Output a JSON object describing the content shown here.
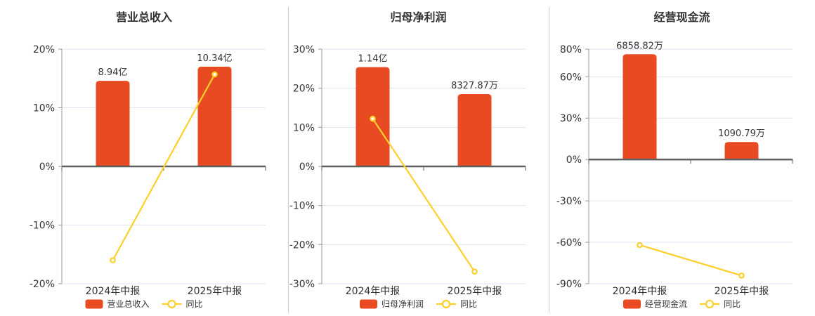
{
  "page": {
    "background": "#ffffff"
  },
  "colors": {
    "bar": "#e84a22",
    "line": "#fcd029",
    "text": "#333333",
    "grid": "#dde5f0",
    "zero_line": "#5f5f5f",
    "axis_line": "#999999",
    "separator": "#cccccc"
  },
  "chart_data": [
    {
      "type": "bar",
      "title": "营业总收入",
      "categories": [
        "2024年中报",
        "2025年中报"
      ],
      "bar_series": {
        "name": "营业总收入",
        "value_labels": [
          "8.94亿",
          "10.34亿"
        ],
        "plotted_heights_axis_units": [
          14.6,
          17.0
        ]
      },
      "line_series": {
        "name": "同比",
        "values_pct": [
          -16.0,
          15.7
        ]
      },
      "y_tick_values": [
        20,
        10,
        0,
        -10,
        -20
      ],
      "y_tick_labels": [
        "20%",
        "10%",
        "0%",
        "-10%",
        "-20%"
      ],
      "ylim": [
        -20,
        20
      ],
      "legend": [
        "营业总收入",
        "同比"
      ],
      "legend_position": "bottom",
      "grid": "on"
    },
    {
      "type": "bar",
      "title": "归母净利润",
      "categories": [
        "2024年中报",
        "2025年中报"
      ],
      "bar_series": {
        "name": "归母净利润",
        "value_labels": [
          "1.14亿",
          "8327.87万"
        ],
        "plotted_heights_axis_units": [
          25.4,
          18.5
        ]
      },
      "line_series": {
        "name": "同比",
        "values_pct": [
          12.2,
          -26.9
        ]
      },
      "y_tick_values": [
        30,
        20,
        10,
        0,
        -10,
        -20,
        -30
      ],
      "y_tick_labels": [
        "30%",
        "20%",
        "10%",
        "0%",
        "-10%",
        "-20%",
        "-30%"
      ],
      "ylim": [
        -30,
        30
      ],
      "legend": [
        "归母净利润",
        "同比"
      ],
      "legend_position": "bottom",
      "grid": "on"
    },
    {
      "type": "bar",
      "title": "经营现金流",
      "categories": [
        "2024年中报",
        "2025年中报"
      ],
      "bar_series": {
        "name": "经营现金流",
        "value_labels": [
          "6858.82万",
          "1090.79万"
        ],
        "plotted_heights_axis_units": [
          76.3,
          12.7
        ]
      },
      "line_series": {
        "name": "同比",
        "values_pct": [
          -62.0,
          -84.1
        ]
      },
      "y_tick_values": [
        80,
        60,
        30,
        0,
        -30,
        -60,
        -90
      ],
      "y_tick_labels": [
        "80%",
        "60%",
        "30%",
        "0%",
        "-30%",
        "-60%",
        "-90%"
      ],
      "ylim": [
        -90,
        80
      ],
      "legend": [
        "经营现金流",
        "同比"
      ],
      "legend_position": "bottom",
      "grid": "on"
    }
  ]
}
